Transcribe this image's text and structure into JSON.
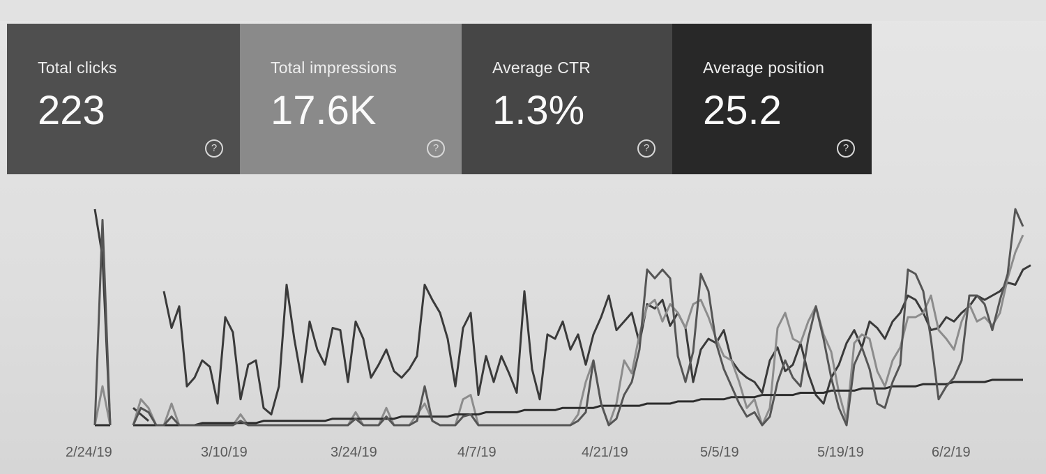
{
  "metrics": [
    {
      "label": "Total clicks",
      "value": "223",
      "help_icon": "help-circle-icon",
      "bg": "#4f4f4f"
    },
    {
      "label": "Total impressions",
      "value": "17.6K",
      "help_icon": "help-circle-icon",
      "bg": "#8a8a8a"
    },
    {
      "label": "Average CTR",
      "value": "1.3%",
      "help_icon": "help-circle-icon",
      "bg": "#464646"
    },
    {
      "label": "Average position",
      "value": "25.2",
      "help_icon": "help-circle-icon",
      "bg": "#282828"
    }
  ],
  "chart_data": {
    "type": "line",
    "x_tick_labels": [
      "2/24/19",
      "3/10/19",
      "3/24/19",
      "4/7/19",
      "4/21/19",
      "5/5/19",
      "5/19/19",
      "6/2/19"
    ],
    "grid": false,
    "series": [
      {
        "key": "position",
        "color": "#3a3a3a",
        "values": [
          100,
          78,
          0,
          null,
          null,
          8,
          5,
          2,
          null,
          62,
          45,
          55,
          18,
          22,
          30,
          27,
          10,
          50,
          43,
          12,
          28,
          30,
          8,
          5,
          18,
          65,
          40,
          20,
          48,
          35,
          28,
          45,
          44,
          20,
          48,
          40,
          22,
          28,
          35,
          25,
          22,
          26,
          32,
          65,
          58,
          52,
          40,
          18,
          45,
          52,
          14,
          32,
          20,
          32,
          24,
          15,
          62,
          26,
          12,
          42,
          40,
          48,
          35,
          42,
          28,
          42,
          50,
          60,
          44,
          48,
          52,
          38,
          56,
          54,
          58,
          46,
          52,
          45,
          20,
          35,
          40,
          38,
          44,
          30,
          25,
          22,
          20,
          15,
          30,
          36,
          25,
          28,
          38,
          24,
          14,
          10,
          22,
          28,
          38,
          44,
          36,
          48,
          45,
          40,
          48,
          52,
          60,
          58,
          52,
          44,
          45,
          50,
          48,
          52,
          55,
          60,
          58,
          60,
          62,
          66,
          65,
          72,
          74
        ]
      },
      {
        "key": "clicks",
        "color": "#8c8c8c",
        "values": [
          0,
          18,
          0,
          null,
          null,
          0,
          12,
          8,
          0,
          0,
          10,
          0,
          0,
          0,
          0,
          0,
          0,
          0,
          0,
          5,
          0,
          0,
          0,
          0,
          0,
          0,
          0,
          0,
          0,
          0,
          0,
          0,
          0,
          0,
          6,
          0,
          0,
          0,
          8,
          0,
          0,
          0,
          5,
          10,
          2,
          0,
          0,
          0,
          12,
          14,
          0,
          0,
          0,
          0,
          0,
          0,
          0,
          0,
          0,
          0,
          0,
          0,
          0,
          5,
          20,
          30,
          10,
          0,
          10,
          30,
          24,
          42,
          55,
          58,
          48,
          56,
          52,
          45,
          56,
          58,
          50,
          40,
          32,
          30,
          20,
          8,
          12,
          0,
          8,
          45,
          52,
          40,
          38,
          48,
          55,
          42,
          34,
          15,
          2,
          38,
          42,
          40,
          25,
          18,
          30,
          36,
          50,
          50,
          52,
          60,
          44,
          40,
          35,
          48,
          56,
          48,
          50,
          46,
          52,
          68,
          80,
          88
        ]
      },
      {
        "key": "impressions",
        "color": "#2c2c2c",
        "values": [
          0,
          0,
          0,
          null,
          null,
          0,
          0,
          0,
          0,
          0,
          0,
          0,
          0,
          0,
          1,
          1,
          1,
          1,
          1,
          1,
          1,
          1,
          2,
          2,
          2,
          2,
          2,
          2,
          2,
          2,
          2,
          3,
          3,
          3,
          3,
          3,
          3,
          3,
          3,
          3,
          4,
          4,
          4,
          4,
          4,
          4,
          4,
          5,
          5,
          5,
          5,
          6,
          6,
          6,
          6,
          6,
          7,
          7,
          7,
          7,
          7,
          8,
          8,
          8,
          8,
          8,
          9,
          9,
          9,
          9,
          9,
          9,
          10,
          10,
          10,
          10,
          11,
          11,
          11,
          12,
          12,
          12,
          12,
          13,
          13,
          13,
          13,
          14,
          14,
          14,
          14,
          14,
          15,
          15,
          15,
          15,
          16,
          16,
          16,
          16,
          17,
          17,
          17,
          17,
          18,
          18,
          18,
          18,
          19,
          19,
          19,
          19,
          20,
          20,
          20,
          20,
          20,
          21,
          21,
          21,
          21,
          21
        ]
      },
      {
        "key": "ctr",
        "color": "#555555",
        "values": [
          0,
          95,
          0,
          null,
          null,
          0,
          8,
          6,
          0,
          0,
          4,
          0,
          0,
          0,
          0,
          0,
          0,
          0,
          0,
          2,
          0,
          0,
          0,
          0,
          0,
          0,
          0,
          0,
          0,
          0,
          0,
          0,
          0,
          0,
          3,
          0,
          0,
          0,
          4,
          0,
          0,
          0,
          2,
          18,
          2,
          0,
          0,
          0,
          4,
          5,
          0,
          0,
          0,
          0,
          0,
          0,
          0,
          0,
          0,
          0,
          0,
          0,
          0,
          2,
          6,
          30,
          10,
          0,
          3,
          14,
          20,
          35,
          72,
          68,
          72,
          68,
          32,
          20,
          34,
          70,
          62,
          38,
          26,
          18,
          10,
          4,
          6,
          0,
          4,
          20,
          30,
          22,
          18,
          40,
          55,
          40,
          22,
          8,
          0,
          28,
          36,
          26,
          10,
          8,
          20,
          28,
          72,
          70,
          62,
          40,
          12,
          18,
          22,
          30,
          60,
          60,
          56,
          44,
          58,
          70,
          100,
          92
        ]
      }
    ]
  }
}
